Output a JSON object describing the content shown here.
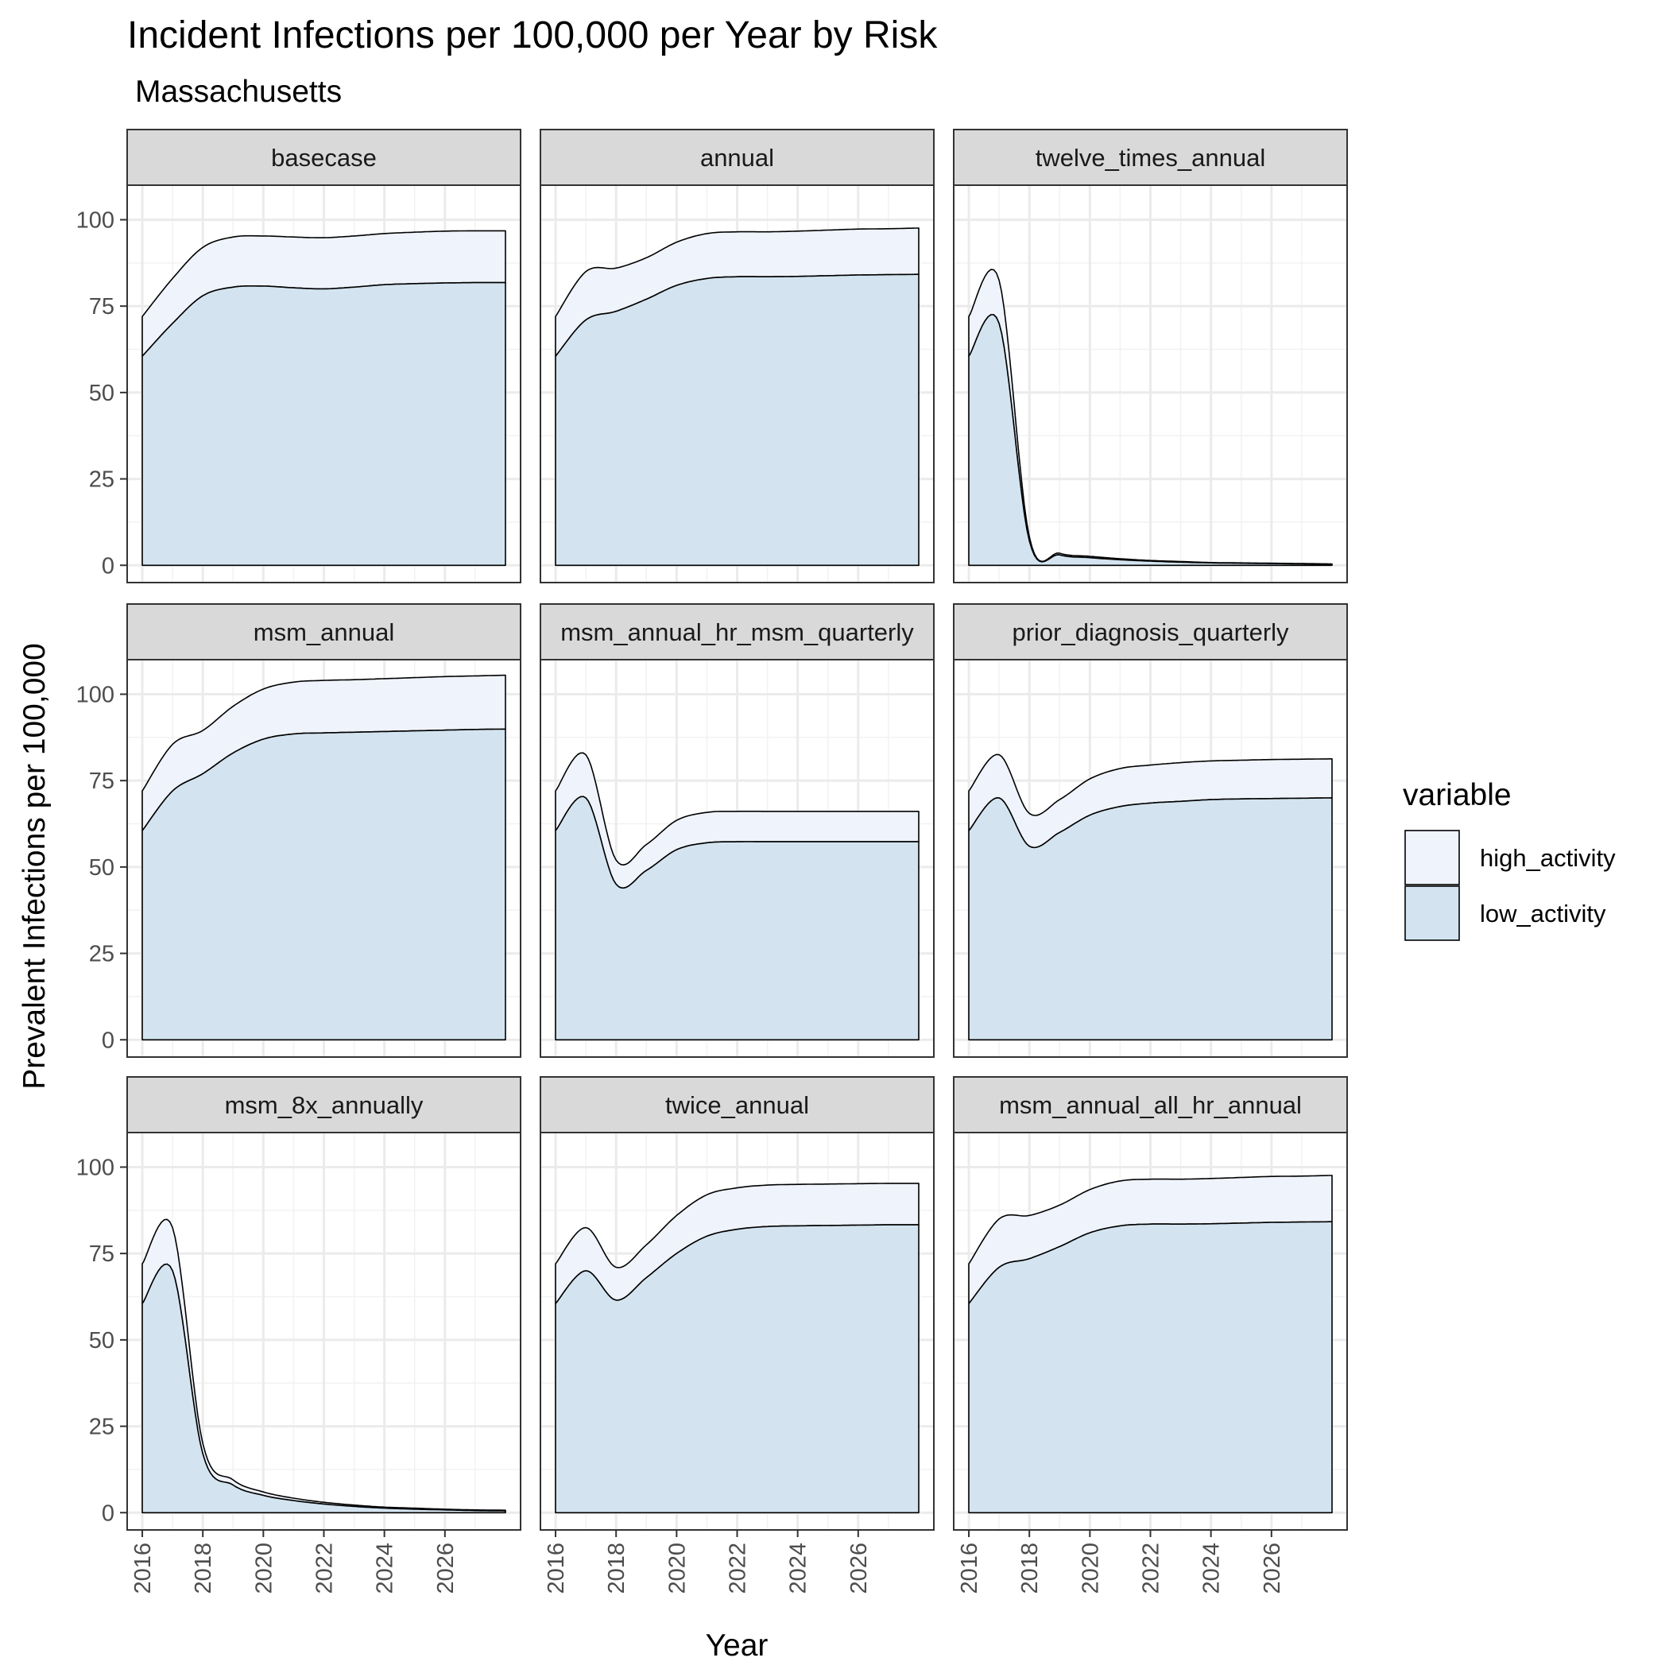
{
  "chart_data": {
    "type": "area",
    "title": "Incident Infections per 100,000 per Year by Risk",
    "subtitle": "Massachusetts",
    "xlabel": "Year",
    "ylabel": "Prevalent Infections per 100,000",
    "xlim": [
      2015.5,
      2028.5
    ],
    "ylim": [
      -5,
      110
    ],
    "x_ticks": [
      2016,
      2018,
      2020,
      2022,
      2024,
      2026
    ],
    "y_ticks": [
      0,
      25,
      50,
      75,
      100
    ],
    "stacked": true,
    "grid": true,
    "legend": {
      "title": "variable",
      "position": "right",
      "items": [
        {
          "label": "high_activity",
          "color": "#eff3fb"
        },
        {
          "label": "low_activity",
          "color": "#d3e4f0"
        }
      ]
    },
    "x": [
      2016,
      2017,
      2018,
      2019,
      2020,
      2021,
      2022,
      2023,
      2024,
      2025,
      2026,
      2027,
      2028
    ],
    "panels": [
      {
        "label": "basecase",
        "series": [
          {
            "name": "low_activity",
            "values": [
              60.5,
              70,
              78,
              80.5,
              80.8,
              80.3,
              80,
              80.5,
              81.2,
              81.5,
              81.7,
              81.8,
              81.8
            ]
          },
          {
            "name": "high_activity",
            "values": [
              11.5,
              13,
              14,
              14.5,
              14.5,
              14.7,
              14.8,
              14.8,
              14.8,
              14.9,
              15,
              15,
              15
            ]
          }
        ]
      },
      {
        "label": "annual",
        "series": [
          {
            "name": "low_activity",
            "values": [
              60.5,
              71,
              73.5,
              77,
              81,
              83,
              83.5,
              83.5,
              83.6,
              83.8,
              84,
              84.1,
              84.2
            ]
          },
          {
            "name": "high_activity",
            "values": [
              11.5,
              14,
              12.5,
              12,
              12.5,
              13,
              13,
              13,
              13.1,
              13.2,
              13.3,
              13.3,
              13.4
            ]
          }
        ]
      },
      {
        "label": "twelve_times_annual",
        "series": [
          {
            "name": "low_activity",
            "values": [
              60.5,
              70,
              7,
              3,
              2.2,
              1.6,
              1.2,
              0.9,
              0.7,
              0.6,
              0.5,
              0.4,
              0.3
            ]
          },
          {
            "name": "high_activity",
            "values": [
              11.5,
              12.5,
              1.2,
              0.5,
              0.4,
              0.3,
              0.2,
              0.2,
              0.1,
              0.1,
              0.1,
              0.1,
              0.1
            ]
          }
        ]
      },
      {
        "label": "msm_annual",
        "series": [
          {
            "name": "low_activity",
            "values": [
              60.5,
              72,
              77,
              83,
              87,
              88.5,
              88.8,
              89,
              89.2,
              89.4,
              89.6,
              89.8,
              89.9
            ]
          },
          {
            "name": "high_activity",
            "values": [
              11.5,
              13.5,
              12.5,
              13.5,
              14.5,
              15,
              15.2,
              15.2,
              15.3,
              15.4,
              15.5,
              15.5,
              15.6
            ]
          }
        ]
      },
      {
        "label": "msm_annual_hr_msm_quarterly",
        "series": [
          {
            "name": "low_activity",
            "values": [
              60.5,
              70,
              45,
              49,
              55,
              57,
              57.3,
              57.3,
              57.3,
              57.3,
              57.3,
              57.3,
              57.3
            ]
          },
          {
            "name": "high_activity",
            "values": [
              11.5,
              12.5,
              7,
              7.5,
              8.5,
              8.8,
              8.8,
              8.8,
              8.8,
              8.8,
              8.8,
              8.8,
              8.8
            ]
          }
        ]
      },
      {
        "label": "prior_diagnosis_quarterly",
        "series": [
          {
            "name": "low_activity",
            "values": [
              60.5,
              70,
              56,
              60,
              65,
              67.5,
              68.5,
              69,
              69.5,
              69.7,
              69.8,
              69.9,
              70
            ]
          },
          {
            "name": "high_activity",
            "values": [
              11.5,
              12.5,
              9.5,
              9.5,
              10.5,
              11,
              11,
              11.2,
              11.2,
              11.2,
              11.3,
              11.3,
              11.3
            ]
          }
        ]
      },
      {
        "label": "msm_8x_annually",
        "series": [
          {
            "name": "low_activity",
            "values": [
              60.5,
              70,
              17,
              8,
              5,
              3.5,
              2.5,
              1.8,
              1.3,
              1,
              0.8,
              0.6,
              0.5
            ]
          },
          {
            "name": "high_activity",
            "values": [
              11.5,
              12.5,
              3,
              1.5,
              1,
              0.7,
              0.5,
              0.4,
              0.3,
              0.3,
              0.2,
              0.2,
              0.2
            ]
          }
        ]
      },
      {
        "label": "twice_annual",
        "series": [
          {
            "name": "low_activity",
            "values": [
              60.5,
              70,
              61.5,
              68,
              75,
              80,
              82,
              82.8,
              83,
              83.1,
              83.2,
              83.3,
              83.3
            ]
          },
          {
            "name": "high_activity",
            "values": [
              11.5,
              12.5,
              9.5,
              9.5,
              11,
              12,
              12,
              12,
              12,
              12,
              12,
              12,
              12
            ]
          }
        ]
      },
      {
        "label": "msm_annual_all_hr_annual",
        "series": [
          {
            "name": "low_activity",
            "values": [
              60.5,
              71,
              73.5,
              77,
              81,
              83,
              83.5,
              83.5,
              83.6,
              83.8,
              84,
              84.1,
              84.2
            ]
          },
          {
            "name": "high_activity",
            "values": [
              11.5,
              14,
              12.5,
              12,
              12.5,
              13,
              13,
              13,
              13.1,
              13.2,
              13.3,
              13.3,
              13.4
            ]
          }
        ]
      }
    ]
  }
}
